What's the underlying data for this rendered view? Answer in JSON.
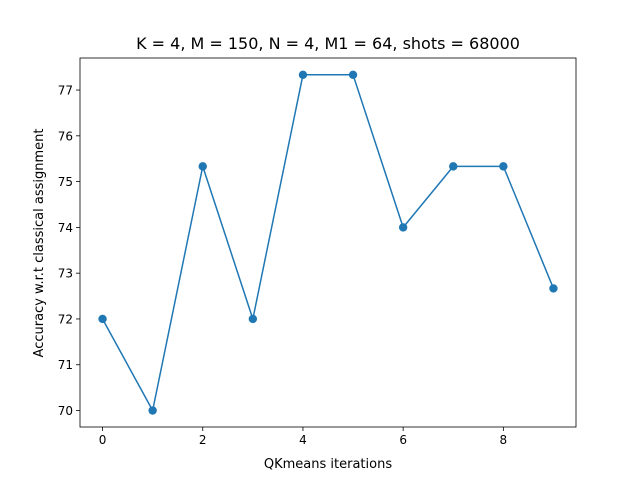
{
  "chart_data": {
    "type": "line",
    "title": "K = 4, M = 150, N = 4, M1 = 64, shots = 68000",
    "xlabel": "QKmeans iterations",
    "ylabel": "Accuracy w.r.t classical assignment",
    "x": [
      0,
      1,
      2,
      3,
      4,
      5,
      6,
      7,
      8,
      9
    ],
    "series": [
      {
        "values": [
          72.0,
          70.0,
          75.333,
          72.0,
          77.333,
          77.333,
          74.0,
          75.333,
          75.333,
          72.667
        ],
        "color": "#1f77b4",
        "marker": "circle"
      }
    ],
    "xlim": [
      -0.45,
      9.45
    ],
    "ylim": [
      69.64,
      77.7
    ],
    "xticks": [
      0,
      2,
      4,
      6,
      8
    ],
    "yticks": [
      70,
      71,
      72,
      73,
      74,
      75,
      76,
      77
    ],
    "grid": false,
    "legend": "none"
  }
}
